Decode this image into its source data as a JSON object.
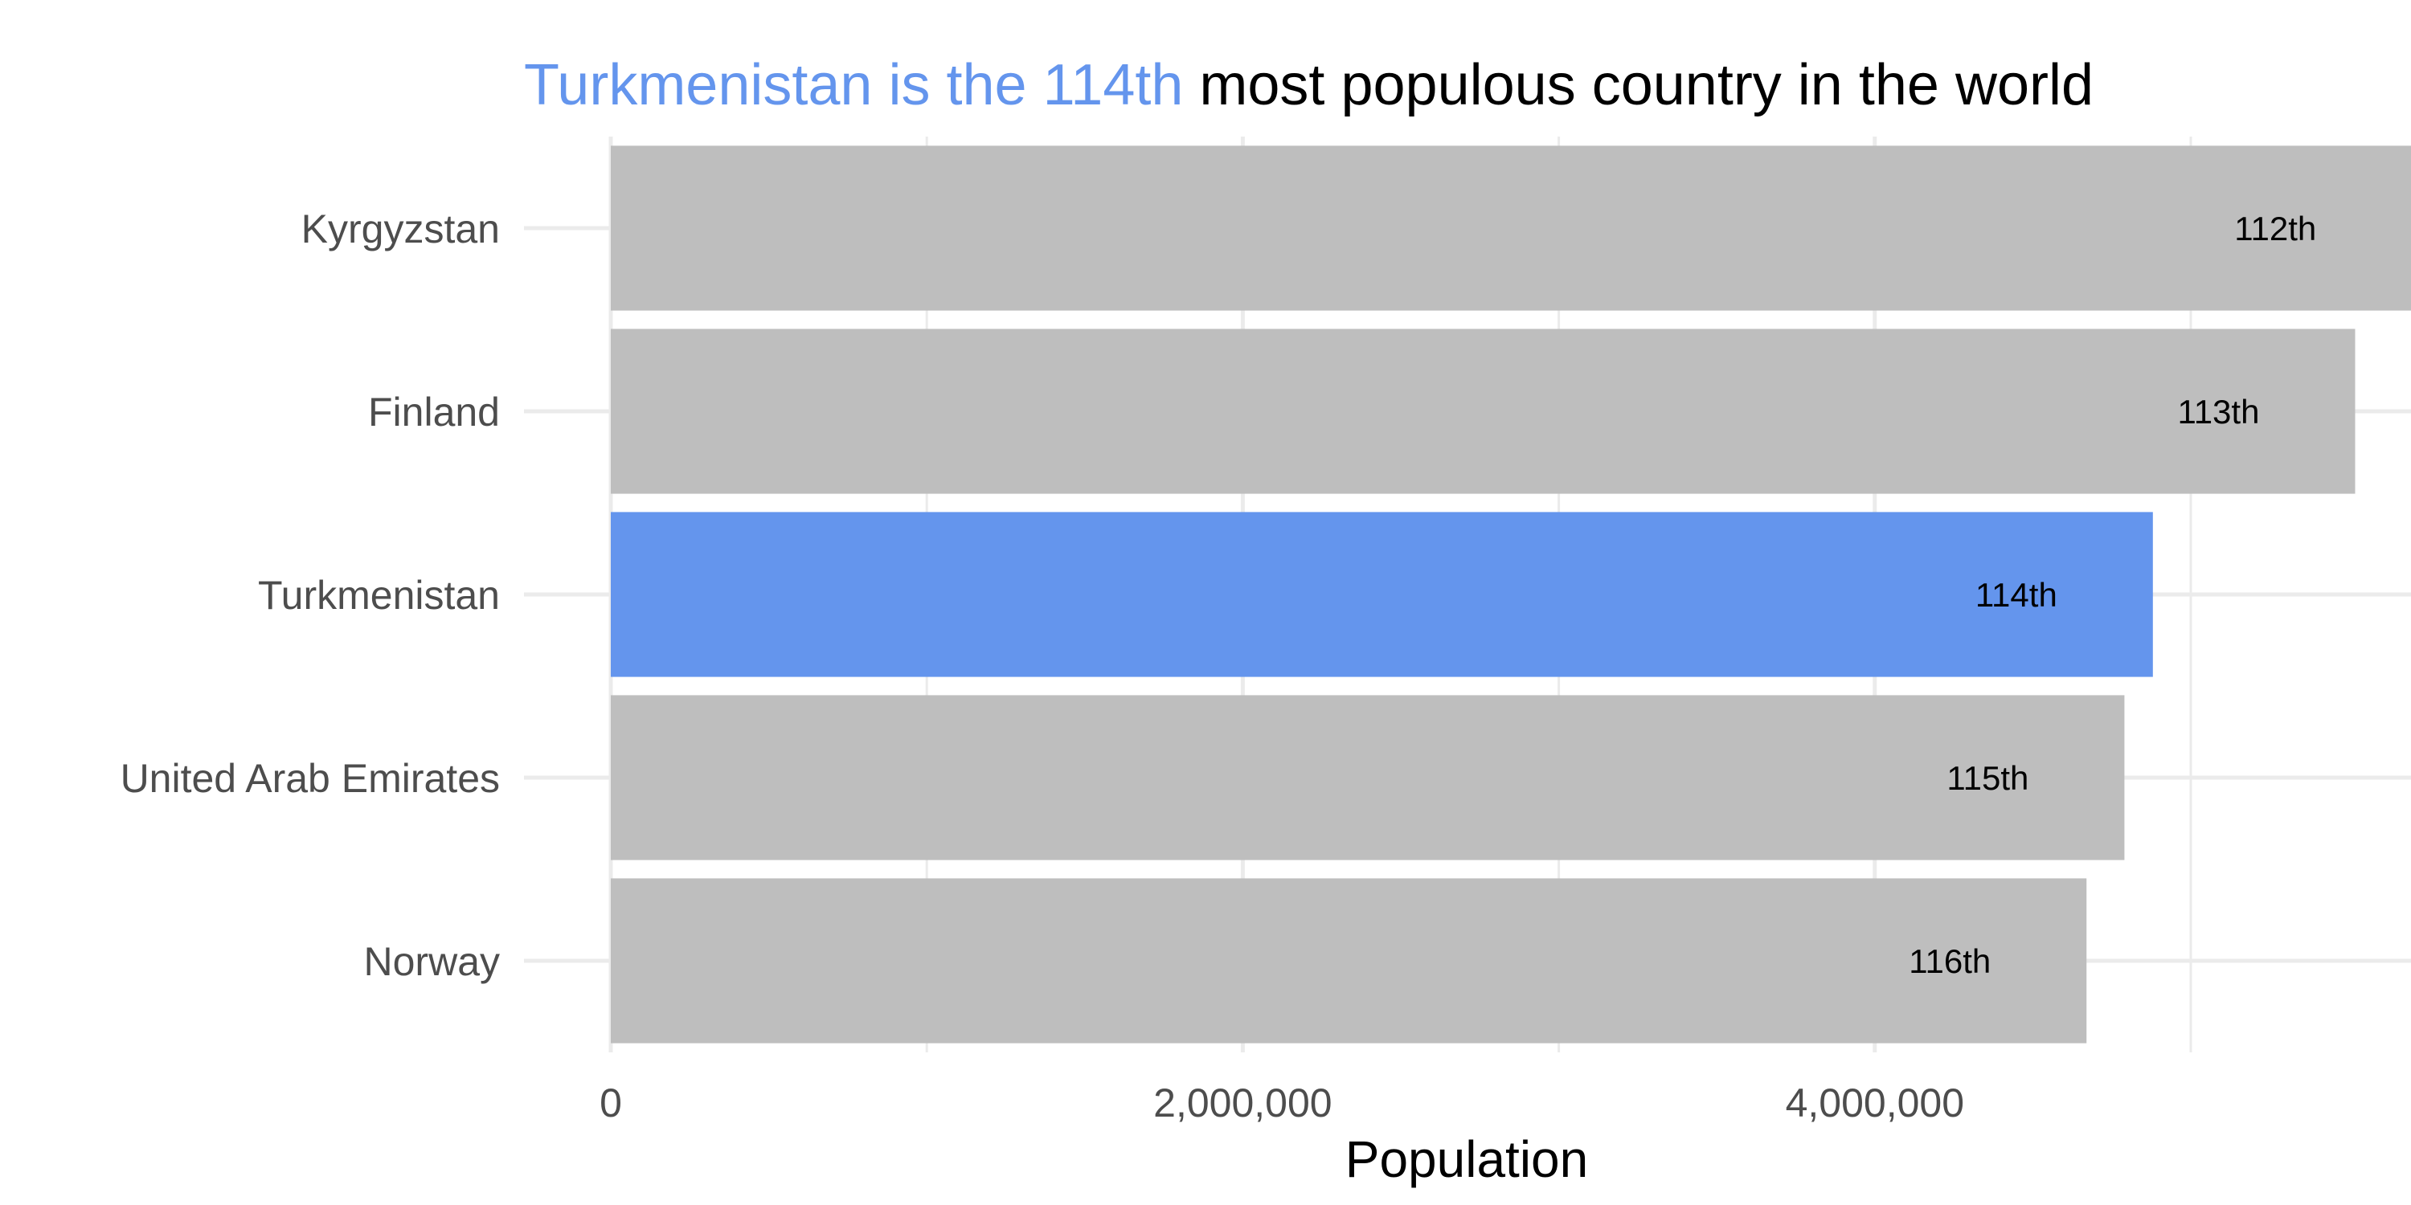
{
  "chart_data": {
    "type": "bar",
    "orientation": "horizontal",
    "title_highlight": "Turkmenistan is the 114th",
    "title_rest": " most populous country in the world",
    "xlabel": "Population",
    "ylabel": "",
    "categories": [
      "Kyrgyzstan",
      "Finland",
      "Turkmenistan",
      "United Arab Emirates",
      "Norway"
    ],
    "values": [
      5700000,
      5520000,
      4880000,
      4790000,
      4670000
    ],
    "labels": [
      "112th",
      "113th",
      "114th",
      "115th",
      "116th"
    ],
    "highlight_index": 2,
    "xlim": [
      0,
      5700000
    ],
    "x_ticks": [
      0,
      2000000,
      4000000
    ],
    "x_tick_labels": [
      "0",
      "2,000,000",
      "4,000,000"
    ],
    "x_minor_ticks": [
      1000000,
      3000000,
      5000000
    ],
    "grid": true,
    "legend": "none",
    "colors": {
      "highlight": "#6495ED",
      "default": "#BEBEBE",
      "grid": "#EBEBEB",
      "title_rest": "#000000"
    }
  }
}
